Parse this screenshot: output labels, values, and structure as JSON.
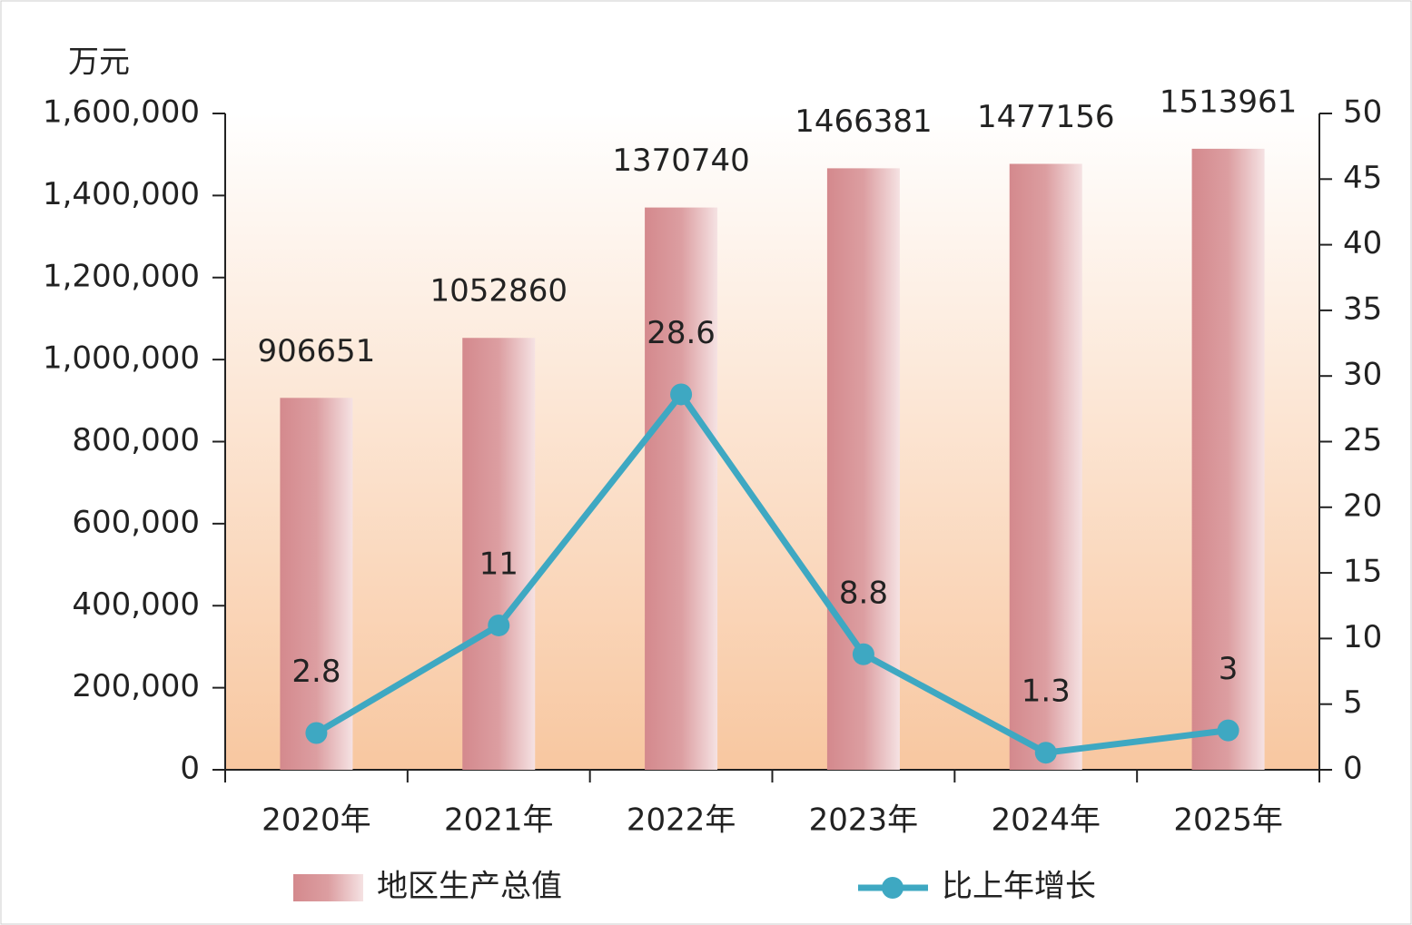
{
  "chart_data": {
    "type": "bar_line",
    "y_unit": "万元",
    "categories": [
      "2020年",
      "2021年",
      "2022年",
      "2023年",
      "2024年",
      "2025年"
    ],
    "series": [
      {
        "name": "地区生产总值",
        "type": "bar",
        "color": "#d4898d",
        "values": [
          906651,
          1052860,
          1370740,
          1466381,
          1477156,
          1513961
        ]
      },
      {
        "name": "比上年增长",
        "type": "line",
        "axis": "y2",
        "color": "#3ea8c2",
        "values": [
          2.8,
          11,
          28.6,
          8.8,
          1.3,
          3
        ]
      }
    ],
    "ylim": [
      0,
      1600000
    ],
    "yticks": [
      0,
      {
        "value": 200000,
        "label": "200,000"
      },
      {
        "value": 400000,
        "label": "400,000"
      },
      {
        "value": 600000,
        "label": "600,000"
      },
      {
        "value": 800000,
        "label": "800,000"
      },
      {
        "value": 1000000,
        "label": "1,000,000"
      },
      {
        "value": 1200000,
        "label": "1,200,000"
      },
      {
        "value": 1400000,
        "label": "1,400,000"
      },
      {
        "value": 1600000,
        "label": "1,600,000"
      }
    ],
    "y2lim": [
      0,
      50
    ],
    "y2ticks": [
      0,
      5,
      10,
      15,
      20,
      25,
      30,
      35,
      40,
      45,
      50
    ],
    "legend": "bottom"
  }
}
